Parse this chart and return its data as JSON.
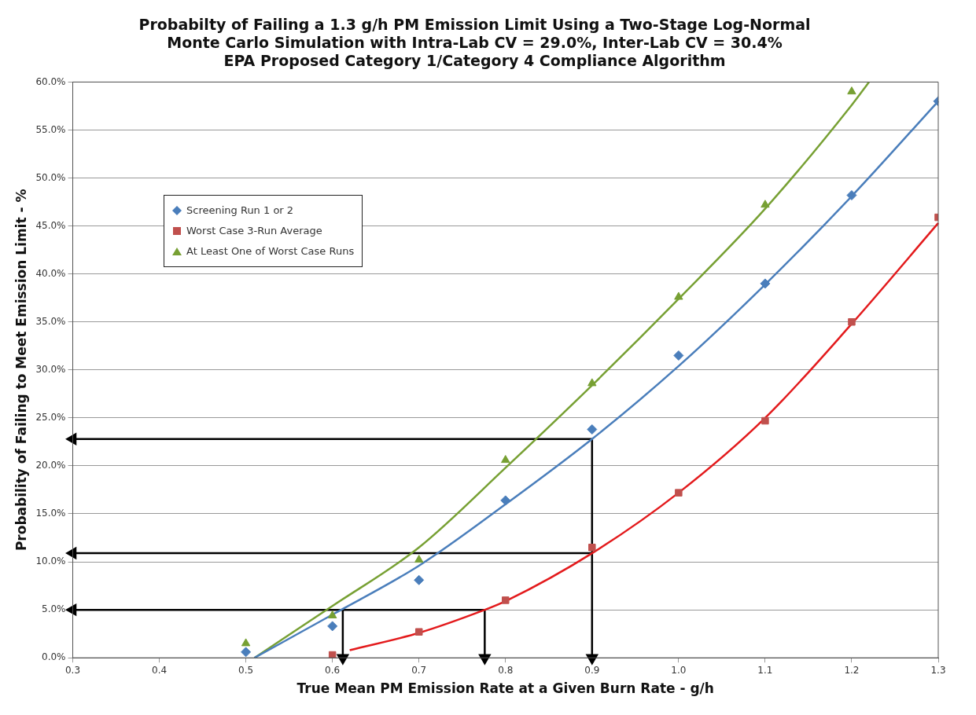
{
  "chart_data": {
    "type": "scatter",
    "title": "Probabilty of Failing a 1.3 g/h PM Emission Limit Using a Two-Stage Log-Normal\nMonte Carlo Simulation with Intra-Lab CV = 29.0%, Inter-Lab CV = 30.4%\nEPA Proposed Category 1/Category 4 Compliance Algorithm",
    "xlabel": "True Mean PM Emission Rate at a Given Burn Rate - g/h",
    "ylabel": "Probability of Failing to Meet Emission Limit - %",
    "xlim": [
      0.3,
      1.3
    ],
    "xticks": [
      0.3,
      0.4,
      0.5,
      0.6,
      0.7,
      0.8,
      0.9,
      {
        "value": 1,
        "label": "1.0"
      },
      1.1,
      1.2,
      1.3
    ],
    "ylim": [
      0,
      60
    ],
    "yticks": [
      {
        "value": 0,
        "label": "0.0%"
      },
      {
        "value": 5,
        "label": "5.0%"
      },
      {
        "value": 10,
        "label": "10.0%"
      },
      {
        "value": 15,
        "label": "15.0%"
      },
      {
        "value": 20,
        "label": "20.0%"
      },
      {
        "value": 25,
        "label": "25.0%"
      },
      {
        "value": 30,
        "label": "30.0%"
      },
      {
        "value": 35,
        "label": "35.0%"
      },
      {
        "value": 40,
        "label": "40.0%"
      },
      {
        "value": 45,
        "label": "45.0%"
      },
      {
        "value": 50,
        "label": "50.0%"
      },
      {
        "value": 55,
        "label": "55.0%"
      },
      {
        "value": 60,
        "label": "60.0%"
      }
    ],
    "grid": "y",
    "legend": "top left",
    "series": [
      {
        "name": "Screening Run 1 or 2",
        "type": "scatter",
        "marker": "diamond",
        "color": "#4a7ebb",
        "x": [
          0.5,
          0.6,
          0.7,
          0.8,
          0.9,
          1.0,
          1.1,
          1.2,
          1.3
        ],
        "values": [
          0.6,
          3.3,
          8.1,
          16.4,
          23.8,
          31.5,
          39.0,
          48.2,
          58.0
        ]
      },
      {
        "name": "Worst Case 3-Run Average",
        "type": "scatter",
        "marker": "square",
        "color": "#c0504d",
        "x": [
          0.6,
          0.7,
          0.8,
          0.9,
          1.0,
          1.1,
          1.2,
          1.3
        ],
        "values": [
          0.3,
          2.7,
          6.0,
          11.5,
          17.2,
          24.7,
          35.0,
          45.9
        ]
      },
      {
        "name": "At Least One of Worst Case Runs",
        "type": "scatter",
        "marker": "triangle",
        "color": "#77a033",
        "x": [
          0.5,
          0.6,
          0.7,
          0.8,
          0.9,
          1.0,
          1.1,
          1.2
        ],
        "values": [
          1.5,
          4.4,
          10.2,
          20.6,
          28.6,
          37.6,
          47.2,
          59.0
        ]
      },
      {
        "type": "line",
        "marker": "none",
        "color": "#4a7ebb",
        "x": [
          0.51,
          0.6,
          0.7,
          0.8,
          0.9,
          1.0,
          1.1,
          1.2,
          1.3
        ],
        "values": [
          0,
          4.5,
          9.6,
          16.0,
          22.8,
          30.4,
          38.9,
          48.1,
          58.0
        ]
      },
      {
        "type": "line",
        "marker": "none",
        "color": "#e31a1c",
        "x": [
          0.62,
          0.7,
          0.776,
          0.8,
          0.9,
          1.0,
          1.1,
          1.2,
          1.3
        ],
        "values": [
          0.8,
          2.6,
          5.0,
          5.9,
          10.9,
          17.2,
          25.0,
          34.8,
          45.3
        ]
      },
      {
        "type": "line",
        "marker": "none",
        "color": "#77a033",
        "x": [
          0.51,
          0.6,
          0.7,
          0.8,
          0.9,
          1.0,
          1.1,
          1.2,
          1.22
        ],
        "values": [
          0,
          5.4,
          11.5,
          19.8,
          28.4,
          37.4,
          46.8,
          57.6,
          60
        ]
      },
      {
        "type": "line",
        "marker": "triangle",
        "color": "#000000",
        "x": [
          0.3,
          0.9,
          0.9
        ],
        "values": [
          22.8,
          22.8,
          0
        ]
      },
      {
        "type": "line",
        "marker": "triangle",
        "color": "#000000",
        "x": [
          0.3,
          0.9
        ],
        "values": [
          10.9,
          10.9
        ]
      },
      {
        "type": "line",
        "marker": "triangle",
        "color": "#000000",
        "x": [
          0.3,
          0.776
        ],
        "values": [
          5.0,
          5.0
        ]
      },
      {
        "type": "line",
        "marker": "triangle",
        "color": "#000000",
        "x": [
          0.612,
          0.612
        ],
        "values": [
          5.0,
          0
        ]
      },
      {
        "type": "line",
        "marker": "triangle",
        "color": "#000000",
        "x": [
          0.776,
          0.776
        ],
        "values": [
          5.0,
          0
        ]
      }
    ]
  }
}
